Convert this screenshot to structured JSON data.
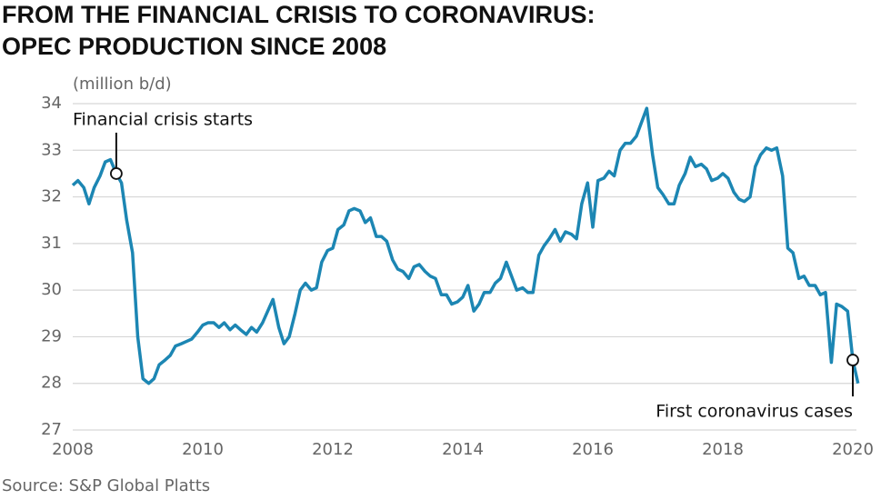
{
  "chart_data": {
    "type": "line",
    "title": [
      "FROM THE FINANCIAL CRISIS TO CORONAVIRUS:",
      "OPEC PRODUCTION SINCE 2008"
    ],
    "y_label": "(million b/d)",
    "source": "Source: S&P Global Platts",
    "color": "#1c86b3",
    "grid": true,
    "xlim": [
      2008,
      2020.1
    ],
    "xticks": [
      2008,
      2010,
      2012,
      2014,
      2016,
      2018,
      2020
    ],
    "ylim": [
      27,
      34
    ],
    "yticks": [
      27,
      28,
      29,
      30,
      31,
      32,
      33,
      34
    ],
    "x": [
      2008.0,
      2008.08,
      2008.17,
      2008.25,
      2008.33,
      2008.42,
      2008.5,
      2008.58,
      2008.67,
      2008.75,
      2008.83,
      2008.92,
      2009.0,
      2009.08,
      2009.17,
      2009.25,
      2009.33,
      2009.42,
      2009.5,
      2009.58,
      2009.67,
      2009.75,
      2009.83,
      2009.92,
      2010.0,
      2010.08,
      2010.17,
      2010.25,
      2010.33,
      2010.42,
      2010.5,
      2010.58,
      2010.67,
      2010.75,
      2010.83,
      2010.92,
      2011.0,
      2011.08,
      2011.17,
      2011.25,
      2011.33,
      2011.42,
      2011.5,
      2011.58,
      2011.67,
      2011.75,
      2011.83,
      2011.92,
      2012.0,
      2012.08,
      2012.17,
      2012.25,
      2012.33,
      2012.42,
      2012.5,
      2012.58,
      2012.67,
      2012.75,
      2012.83,
      2012.92,
      2013.0,
      2013.08,
      2013.17,
      2013.25,
      2013.33,
      2013.42,
      2013.5,
      2013.58,
      2013.67,
      2013.75,
      2013.83,
      2013.92,
      2014.0,
      2014.08,
      2014.17,
      2014.25,
      2014.33,
      2014.42,
      2014.5,
      2014.58,
      2014.67,
      2014.75,
      2014.83,
      2014.92,
      2015.0,
      2015.08,
      2015.17,
      2015.25,
      2015.33,
      2015.42,
      2015.5,
      2015.58,
      2015.67,
      2015.75,
      2015.83,
      2015.92,
      2016.0,
      2016.08,
      2016.17,
      2016.25,
      2016.33,
      2016.42,
      2016.5,
      2016.58,
      2016.67,
      2016.75,
      2016.83,
      2016.92,
      2017.0,
      2017.08,
      2017.17,
      2017.25,
      2017.33,
      2017.42,
      2017.5,
      2017.58,
      2017.67,
      2017.75,
      2017.83,
      2017.92,
      2018.0,
      2018.08,
      2018.17,
      2018.25,
      2018.33,
      2018.42,
      2018.5,
      2018.58,
      2018.67,
      2018.75,
      2018.83,
      2018.92,
      2019.0,
      2019.08,
      2019.17,
      2019.25,
      2019.33,
      2019.42,
      2019.5,
      2019.58,
      2019.67,
      2019.75,
      2019.83,
      2019.92,
      2020.0,
      2020.08
    ],
    "values": [
      32.25,
      32.35,
      32.2,
      31.85,
      32.2,
      32.45,
      32.75,
      32.8,
      32.5,
      32.3,
      31.5,
      30.8,
      29.0,
      28.1,
      28.0,
      28.1,
      28.4,
      28.5,
      28.6,
      28.8,
      28.85,
      28.9,
      28.95,
      29.1,
      29.25,
      29.3,
      29.3,
      29.2,
      29.3,
      29.15,
      29.25,
      29.15,
      29.05,
      29.2,
      29.1,
      29.3,
      29.55,
      29.8,
      29.2,
      28.85,
      29.0,
      29.5,
      30.0,
      30.15,
      30.0,
      30.05,
      30.6,
      30.85,
      30.9,
      31.3,
      31.4,
      31.7,
      31.75,
      31.7,
      31.45,
      31.55,
      31.15,
      31.15,
      31.05,
      30.65,
      30.45,
      30.4,
      30.25,
      30.5,
      30.55,
      30.4,
      30.3,
      30.25,
      29.9,
      29.9,
      29.7,
      29.75,
      29.85,
      30.1,
      29.55,
      29.7,
      29.95,
      29.95,
      30.15,
      30.25,
      30.6,
      30.3,
      30.0,
      30.05,
      29.95,
      29.95,
      30.75,
      30.95,
      31.1,
      31.3,
      31.05,
      31.25,
      31.2,
      31.1,
      31.85,
      32.3,
      31.35,
      32.35,
      32.4,
      32.55,
      32.45,
      33.0,
      33.15,
      33.15,
      33.3,
      33.6,
      33.9,
      32.9,
      32.2,
      32.05,
      31.85,
      31.85,
      32.25,
      32.5,
      32.85,
      32.65,
      32.7,
      32.6,
      32.35,
      32.4,
      32.5,
      32.4,
      32.1,
      31.95,
      31.9,
      32.0,
      32.65,
      32.9,
      33.05,
      33.0,
      33.05,
      32.45,
      30.9,
      30.8,
      30.25,
      30.3,
      30.1,
      30.1,
      29.9,
      29.95,
      28.45,
      29.7,
      29.65,
      29.55,
      28.5,
      28.0
    ],
    "annotations": [
      {
        "text": "Financial crisis starts",
        "x": 2008.67,
        "y": 32.5
      },
      {
        "text": "First coronavirus cases",
        "x": 2020.0,
        "y": 28.5
      }
    ]
  }
}
